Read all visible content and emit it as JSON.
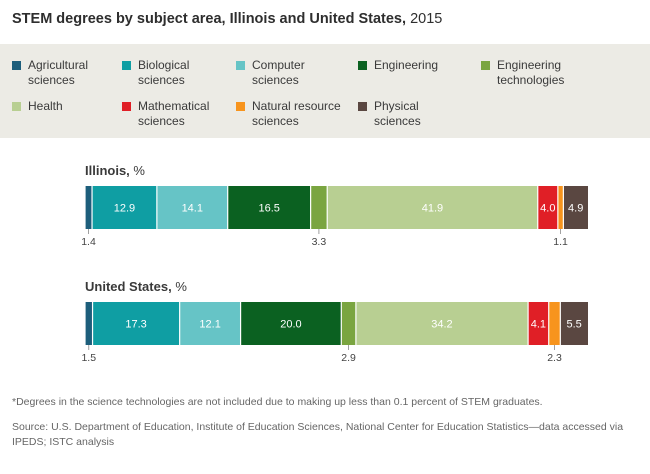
{
  "title": {
    "main": "STEM degrees by subject area, Illinois and United States,",
    "year": "2015"
  },
  "legend": [
    {
      "label_lines": [
        "Agricultural",
        "sciences"
      ],
      "color": "#1d5e7b"
    },
    {
      "label_lines": [
        "Biological",
        "sciences"
      ],
      "color": "#0f9ea3"
    },
    {
      "label_lines": [
        "Computer",
        "sciences"
      ],
      "color": "#66c4c6"
    },
    {
      "label_lines": [
        "Engineering"
      ],
      "color": "#0b6121"
    },
    {
      "label_lines": [
        "Engineering",
        "technologies"
      ],
      "color": "#7aa540"
    },
    {
      "label_lines": [
        "Health"
      ],
      "color": "#b8cf92"
    },
    {
      "label_lines": [
        "Mathematical",
        "sciences"
      ],
      "color": "#e01f26"
    },
    {
      "label_lines": [
        "Natural resource",
        "sciences"
      ],
      "color": "#f7941d"
    },
    {
      "label_lines": [
        "Physical",
        "sciences"
      ],
      "color": "#5a4741"
    }
  ],
  "chart_data": [
    {
      "type": "bar",
      "orientation": "horizontal-stacked",
      "title": "Illinois,",
      "unit": "%",
      "series": [
        {
          "name": "Agricultural sciences",
          "value": 1.4,
          "label": "1.4",
          "label_position": "below"
        },
        {
          "name": "Biological sciences",
          "value": 12.9,
          "label": "12.9",
          "label_position": "inside"
        },
        {
          "name": "Computer sciences",
          "value": 14.1,
          "label": "14.1",
          "label_position": "inside"
        },
        {
          "name": "Engineering",
          "value": 16.5,
          "label": "16.5",
          "label_position": "inside"
        },
        {
          "name": "Engineering technologies",
          "value": 3.3,
          "label": "3.3",
          "label_position": "below"
        },
        {
          "name": "Health",
          "value": 41.9,
          "label": "41.9",
          "label_position": "inside"
        },
        {
          "name": "Mathematical sciences",
          "value": 4.0,
          "label": "4.0",
          "label_position": "inside"
        },
        {
          "name": "Natural resource sciences",
          "value": 1.1,
          "label": "1.1",
          "label_position": "below"
        },
        {
          "name": "Physical sciences",
          "value": 4.9,
          "label": "4.9",
          "label_position": "inside"
        }
      ]
    },
    {
      "type": "bar",
      "orientation": "horizontal-stacked",
      "title": "United States,",
      "unit": "%",
      "series": [
        {
          "name": "Agricultural sciences",
          "value": 1.5,
          "label": "1.5",
          "label_position": "below"
        },
        {
          "name": "Biological sciences",
          "value": 17.3,
          "label": "17.3",
          "label_position": "inside"
        },
        {
          "name": "Computer sciences",
          "value": 12.1,
          "label": "12.1",
          "label_position": "inside"
        },
        {
          "name": "Engineering",
          "value": 20.0,
          "label": "20.0",
          "label_position": "inside"
        },
        {
          "name": "Engineering technologies",
          "value": 2.9,
          "label": "2.9",
          "label_position": "below"
        },
        {
          "name": "Health",
          "value": 34.2,
          "label": "34.2",
          "label_position": "inside"
        },
        {
          "name": "Mathematical sciences",
          "value": 4.1,
          "label": "4.1",
          "label_position": "inside"
        },
        {
          "name": "Natural resource sciences",
          "value": 2.3,
          "label": "2.3",
          "label_position": "below"
        },
        {
          "name": "Physical sciences",
          "value": 5.5,
          "label": "5.5",
          "label_position": "inside"
        }
      ]
    }
  ],
  "footnote": "*Degrees in the science technologies are not included due to making up less than 0.1 percent of STEM graduates.",
  "source": "Source: U.S. Department of Education, Institute of Education Sciences, National Center for Education Statistics—data accessed via IPEDS; ISTC analysis"
}
